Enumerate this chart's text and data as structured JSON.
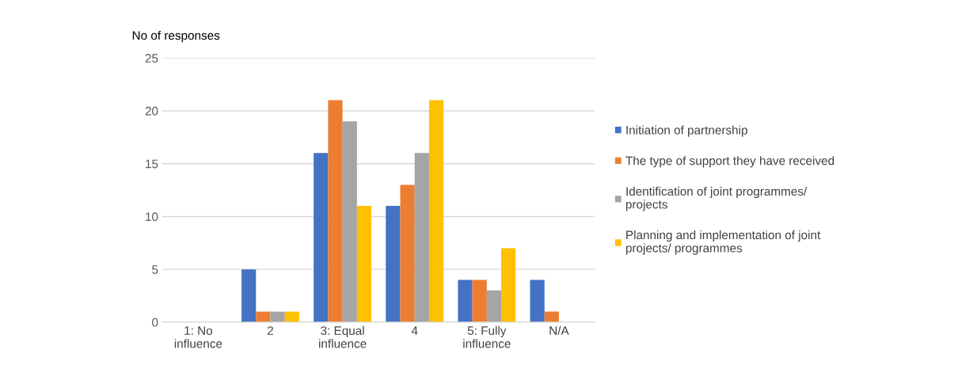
{
  "chart_data": {
    "type": "bar",
    "ylabel": "No of responses",
    "categories": [
      "1: No\ninfluence",
      "2",
      "3: Equal\ninfluence",
      "4",
      "5: Fully\ninfluence",
      "N/A"
    ],
    "series": [
      {
        "name": "Initiation of partnership",
        "color": "#4472c4",
        "values": [
          0,
          5,
          16,
          11,
          4,
          4
        ]
      },
      {
        "name": "The type of support they have received",
        "color": "#ed7d31",
        "values": [
          0,
          1,
          21,
          13,
          4,
          1
        ]
      },
      {
        "name": "Identification of joint programmes/\nprojects",
        "color": "#a5a5a5",
        "values": [
          0,
          1,
          19,
          16,
          3,
          0
        ]
      },
      {
        "name": "Planning and implementation of joint\nprojects/ programmes",
        "color": "#ffc000",
        "values": [
          0,
          1,
          11,
          21,
          7,
          0
        ]
      }
    ],
    "ylim": [
      0,
      25
    ],
    "yticks": [
      0,
      5,
      10,
      15,
      20,
      25
    ],
    "grid": "y",
    "legend": "right"
  }
}
